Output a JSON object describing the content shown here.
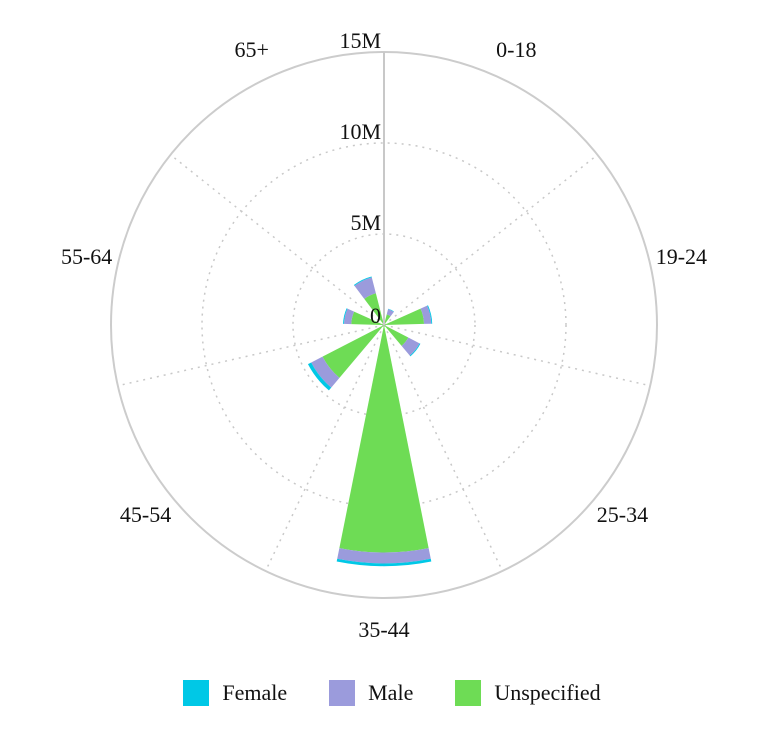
{
  "chart_data": {
    "type": "polar-stacked-bar",
    "categories": [
      "0-18",
      "19-24",
      "25-34",
      "35-44",
      "45-54",
      "55-64",
      "65+"
    ],
    "series": [
      {
        "name": "Female",
        "color": "#00c8e6",
        "values": [
          0.02,
          0.05,
          0.05,
          0.15,
          0.2,
          0.05,
          0.05
        ]
      },
      {
        "name": "Male",
        "color": "#9b9bdc",
        "values": [
          0.3,
          0.4,
          0.7,
          0.6,
          0.7,
          0.4,
          0.9
        ]
      },
      {
        "name": "Unspecified",
        "color": "#6edc55",
        "values": [
          0.6,
          2.2,
          1.5,
          12.5,
          3.8,
          1.8,
          1.8
        ]
      }
    ],
    "radial_axis": {
      "range": [
        0,
        15
      ],
      "ticks": [
        {
          "value": 0,
          "label": "0"
        },
        {
          "value": 5,
          "label": "5M"
        },
        {
          "value": 10,
          "label": "10M"
        },
        {
          "value": 15,
          "label": "15M"
        }
      ]
    },
    "grid": true,
    "legend_position": "bottom"
  }
}
